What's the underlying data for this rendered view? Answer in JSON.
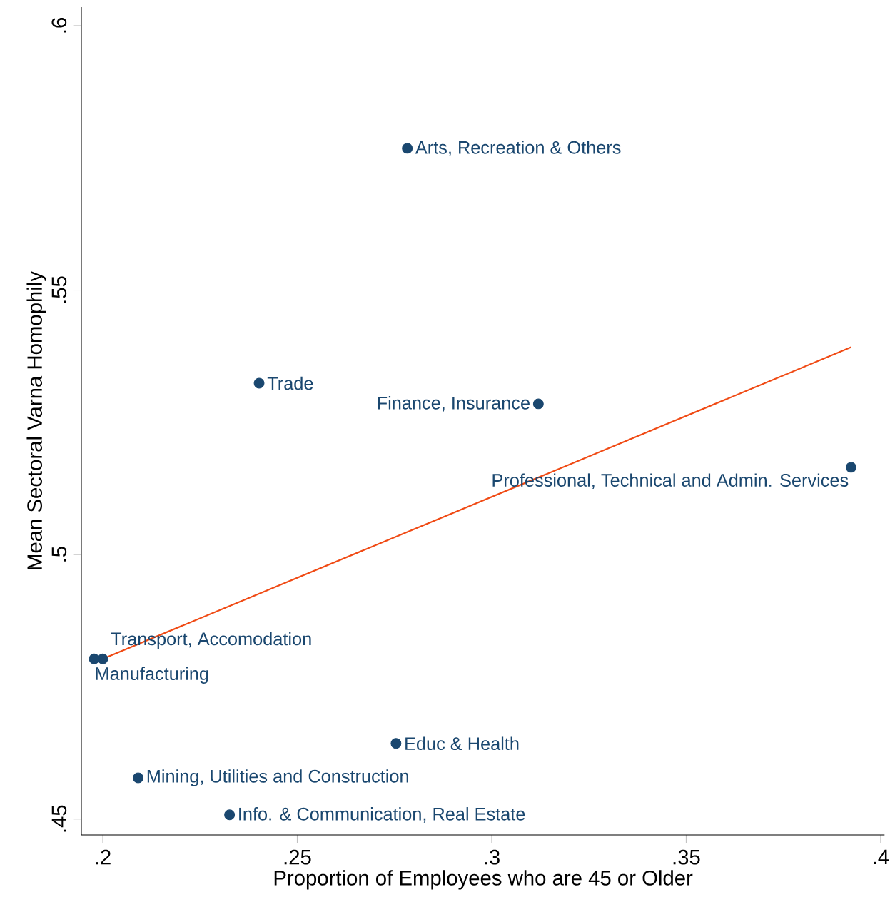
{
  "chart_data": {
    "type": "scatter",
    "xlabel": "Proportion of Employees who are 45 or Older",
    "ylabel": "Mean Sectoral Varna Homophily",
    "xlim": [
      0.1945,
      0.401
    ],
    "ylim": [
      0.447,
      0.6035
    ],
    "xticks": [
      {
        "value": 0.2,
        "label": ".2"
      },
      {
        "value": 0.25,
        "label": ".25"
      },
      {
        "value": 0.3,
        "label": ".3"
      },
      {
        "value": 0.35,
        "label": ".35"
      },
      {
        "value": 0.4,
        "label": ".4"
      }
    ],
    "yticks": [
      {
        "value": 0.45,
        "label": ".45"
      },
      {
        "value": 0.5,
        "label": ".5"
      },
      {
        "value": 0.55,
        "label": ".55"
      },
      {
        "value": 0.6,
        "label": ".6"
      }
    ],
    "grid": false,
    "marker": "circle",
    "series": [
      {
        "color": "#1a476f",
        "x": [
          0.2783,
          0.2402,
          0.312,
          0.3924,
          0.2,
          0.1978,
          0.2754,
          0.2091,
          0.2326
        ],
        "values": [
          0.5768,
          0.5324,
          0.5285,
          0.5165,
          0.4803,
          0.4803,
          0.4643,
          0.4578,
          0.4508
        ]
      },
      {
        "type": "line",
        "marker": "none",
        "color": "#f04a14",
        "x": [
          0.2,
          0.3924
        ],
        "values": [
          0.4803,
          0.5392
        ]
      }
    ],
    "annotations": [
      {
        "text": "Arts, Recreation & Others",
        "x": 0.2783,
        "y": 0.5768
      },
      {
        "text": "Trade",
        "x": 0.2402,
        "y": 0.5324
      },
      {
        "text": "Finance, Insurance",
        "x": 0.312,
        "y": 0.5285
      },
      {
        "text": "Professional, Technical and Admin. Services",
        "x": 0.3924,
        "y": 0.5165
      },
      {
        "text": "Transport, Accomodation",
        "x": 0.2,
        "y": 0.4803
      },
      {
        "text": "Manufacturing",
        "x": 0.1978,
        "y": 0.4803
      },
      {
        "text": "Educ & Health",
        "x": 0.2754,
        "y": 0.4643
      },
      {
        "text": "Mining, Utilities and Construction",
        "x": 0.2091,
        "y": 0.4578
      },
      {
        "text": "Info. & Communication, Real Estate",
        "x": 0.2326,
        "y": 0.4508
      }
    ]
  }
}
